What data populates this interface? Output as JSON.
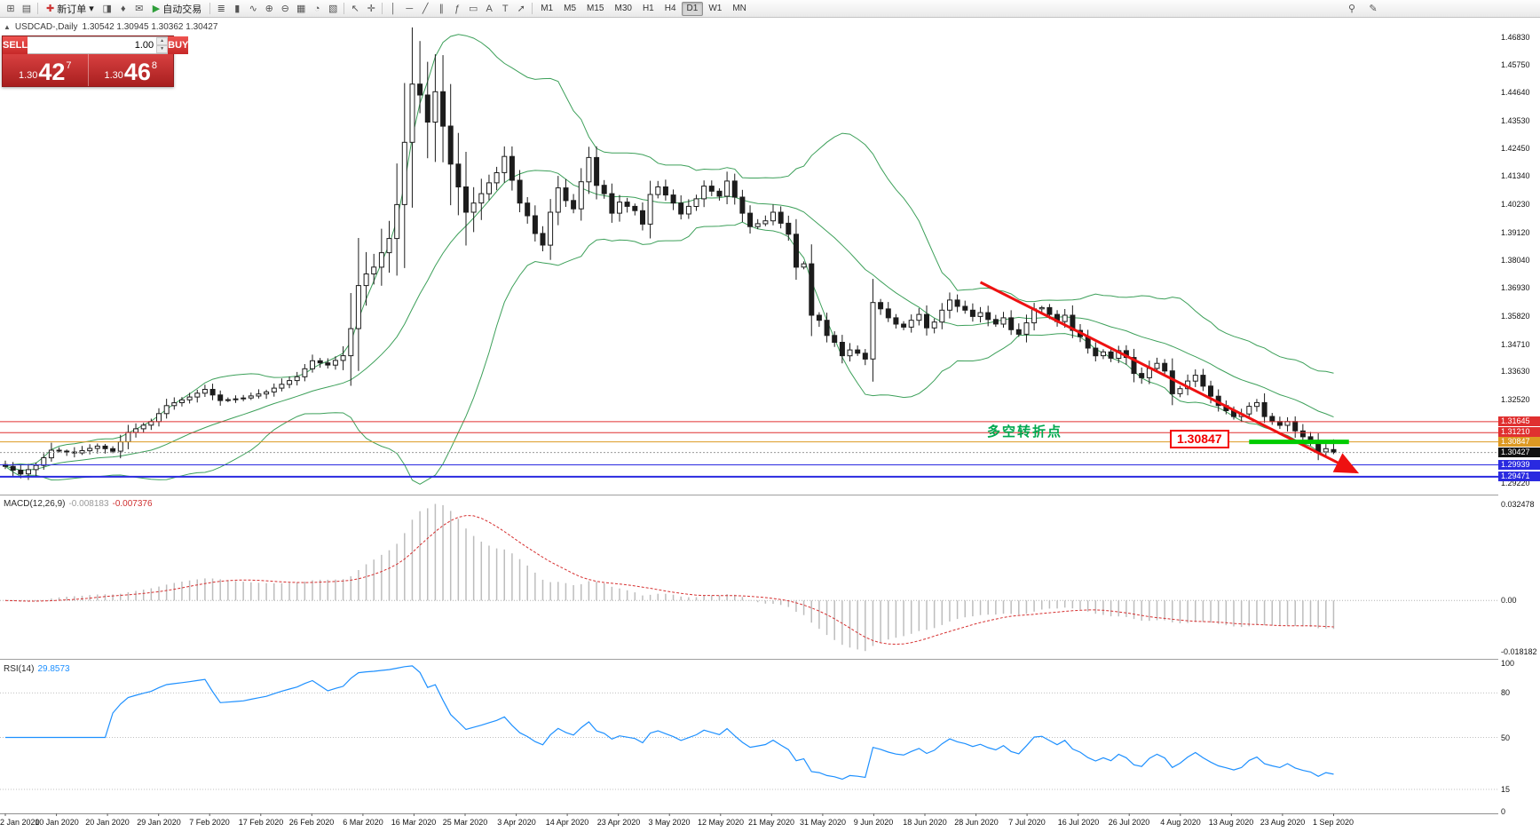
{
  "toolbar": {
    "left_icons": [
      {
        "name": "new-chart-icon",
        "glyph": "⊞"
      },
      {
        "name": "chart-profiles-icon",
        "glyph": "▤"
      }
    ],
    "new_order": {
      "icon_glyph": "✚",
      "label": "新订单",
      "caret": "▾"
    },
    "mid_icons": [
      {
        "name": "market-depth-icon",
        "glyph": "◨"
      },
      {
        "name": "alerts-icon",
        "glyph": "♦"
      },
      {
        "name": "mailbox-icon",
        "glyph": "✉"
      }
    ],
    "autotrade": {
      "icon_glyph": "▶",
      "label": "自动交易"
    },
    "chart_icons": [
      {
        "name": "bar-chart-icon",
        "glyph": "≣"
      },
      {
        "name": "candlestick-chart-icon",
        "glyph": "▮"
      },
      {
        "name": "line-chart-icon",
        "glyph": "∿"
      },
      {
        "name": "zoom-in-icon",
        "glyph": "⊕"
      },
      {
        "name": "zoom-out-icon",
        "glyph": "⊖"
      },
      {
        "name": "grid-icon",
        "glyph": "▦"
      },
      {
        "name": "period-icon",
        "glyph": "◔"
      },
      {
        "name": "templates-icon",
        "glyph": "▧"
      }
    ],
    "pointer_icons": [
      {
        "name": "cursor-icon",
        "glyph": "↖"
      },
      {
        "name": "crosshair-icon",
        "glyph": "✛"
      }
    ],
    "object_icons": [
      {
        "name": "vertical-line-icon",
        "glyph": "│"
      },
      {
        "name": "horizontal-line-icon",
        "glyph": "─"
      },
      {
        "name": "trendline-icon",
        "glyph": "╱"
      },
      {
        "name": "channel-icon",
        "glyph": "∥"
      },
      {
        "name": "fibonacci-icon",
        "glyph": "ƒ"
      },
      {
        "name": "shapes-icon",
        "glyph": "▭"
      },
      {
        "name": "text-icon",
        "glyph": "A"
      },
      {
        "name": "label-icon",
        "glyph": "T"
      },
      {
        "name": "arrow-tools-icon",
        "glyph": "➚"
      }
    ],
    "timeframes": [
      "M1",
      "M5",
      "M15",
      "M30",
      "H1",
      "H4",
      "D1",
      "W1",
      "MN"
    ],
    "active_timeframe": "D1",
    "right_icons": [
      {
        "name": "search-icon",
        "glyph": "⚲"
      },
      {
        "name": "edit-icon",
        "glyph": "✎"
      }
    ]
  },
  "chart": {
    "collapse_arrow": "▲",
    "symbol_title": "USDCAD-,Daily",
    "ohlc_text": "1.30542 1.30945 1.30362 1.30427",
    "trade_panel": {
      "sell_label": "SELL",
      "buy_label": "BUY",
      "volume": "1.00",
      "up_glyph": "▲",
      "down_glyph": "▼",
      "sell_price": {
        "small": "1.30",
        "big": "42",
        "sup": "7"
      },
      "buy_price": {
        "small": "1.30",
        "big": "46",
        "sup": "8"
      }
    },
    "annotations": {
      "price_label": "1.30847",
      "turning_point_label": "多空转折点"
    },
    "price_axis": {
      "plain_labels": [
        {
          "text": "1.46830",
          "price": 1.4683
        },
        {
          "text": "1.45750",
          "price": 1.4575
        },
        {
          "text": "1.44640",
          "price": 1.4464
        },
        {
          "text": "1.43530",
          "price": 1.4353
        },
        {
          "text": "1.42450",
          "price": 1.4245
        },
        {
          "text": "1.41340",
          "price": 1.4134
        },
        {
          "text": "1.40230",
          "price": 1.4023
        },
        {
          "text": "1.39120",
          "price": 1.3912
        },
        {
          "text": "1.38040",
          "price": 1.3804
        },
        {
          "text": "1.36930",
          "price": 1.3693
        },
        {
          "text": "1.35820",
          "price": 1.3582
        },
        {
          "text": "1.34710",
          "price": 1.3471
        },
        {
          "text": "1.33630",
          "price": 1.3363
        },
        {
          "text": "1.32520",
          "price": 1.3252
        },
        {
          "text": "1.29220",
          "price": 1.2922
        }
      ],
      "level_labels": [
        {
          "text": "1.31645",
          "price": 1.31645,
          "bg": "#e03030",
          "fg": "#ffffff"
        },
        {
          "text": "1.31210",
          "price": 1.3121,
          "bg": "#e03030",
          "fg": "#ffffff"
        },
        {
          "text": "1.30847",
          "price": 1.30847,
          "bg": "#dd9922",
          "fg": "#ffffff"
        },
        {
          "text": "1.30427",
          "price": 1.30427,
          "bg": "#111111",
          "fg": "#ffffff"
        },
        {
          "text": "1.29939",
          "price": 1.29939,
          "bg": "#2a2ae0",
          "fg": "#ffffff"
        },
        {
          "text": "1.29471",
          "price": 1.29471,
          "bg": "#2a2ae0",
          "fg": "#ffffff"
        }
      ]
    }
  },
  "macd": {
    "label": "MACD(12,26,9)",
    "value_main": "-0.008183",
    "value_signal": "-0.007376",
    "axis_top": "0.032478",
    "axis_zero": "0.00",
    "axis_bottom": "-0.018182"
  },
  "rsi": {
    "label": "RSI(14)",
    "value": "29.8573",
    "axis_labels": [
      {
        "text": "100",
        "value": 100
      },
      {
        "text": "80",
        "value": 80
      },
      {
        "text": "50",
        "value": 50
      },
      {
        "text": "15",
        "value": 15
      },
      {
        "text": "0",
        "value": 0
      }
    ],
    "level_lines": [
      80,
      50,
      15
    ]
  },
  "time_axis": {
    "dates": [
      "2 Jan 2020",
      "10 Jan 2020",
      "20 Jan 2020",
      "29 Jan 2020",
      "7 Feb 2020",
      "17 Feb 2020",
      "26 Feb 2020",
      "6 Mar 2020",
      "16 Mar 2020",
      "25 Mar 2020",
      "3 Apr 2020",
      "14 Apr 2020",
      "23 Apr 2020",
      "3 May 2020",
      "12 May 2020",
      "21 May 2020",
      "31 May 2020",
      "9 Jun 2020",
      "18 Jun 2020",
      "28 Jun 2020",
      "7 Jul 2020",
      "16 Jul 2020",
      "26 Jul 2020",
      "4 Aug 2020",
      "13 Aug 2020",
      "23 Aug 2020",
      "1 Sep 2020"
    ]
  },
  "chart_data": {
    "type": "candlestick",
    "symbol": "USDCAD",
    "period": "Daily",
    "bars": 174,
    "ohlc_current": {
      "open": 1.30542,
      "high": 1.30945,
      "low": 1.30362,
      "close": 1.30427
    },
    "bid": "1.30427",
    "ask": "1.30468",
    "price_axis": {
      "min": 1.288,
      "max": 1.476
    },
    "close_anchors": [
      [
        0,
        1.2988
      ],
      [
        2,
        1.2958
      ],
      [
        4,
        1.2992
      ],
      [
        6,
        1.3052
      ],
      [
        9,
        1.3041
      ],
      [
        12,
        1.3068
      ],
      [
        14,
        1.3048
      ],
      [
        16,
        1.3122
      ],
      [
        19,
        1.3165
      ],
      [
        21,
        1.3228
      ],
      [
        24,
        1.3262
      ],
      [
        26,
        1.3292
      ],
      [
        28,
        1.3248
      ],
      [
        31,
        1.3258
      ],
      [
        34,
        1.3282
      ],
      [
        36,
        1.3312
      ],
      [
        38,
        1.3342
      ],
      [
        40,
        1.3405
      ],
      [
        42,
        1.3388
      ],
      [
        44,
        1.3425
      ],
      [
        45,
        1.3532
      ],
      [
        46,
        1.3702
      ],
      [
        47,
        1.3748
      ],
      [
        48,
        1.3775
      ],
      [
        49,
        1.3832
      ],
      [
        50,
        1.3888
      ],
      [
        51,
        1.4022
      ],
      [
        52,
        1.4268
      ],
      [
        53,
        1.4498
      ],
      [
        54,
        1.4455
      ],
      [
        55,
        1.4348
      ],
      [
        56,
        1.4468
      ],
      [
        57,
        1.4332
      ],
      [
        58,
        1.4182
      ],
      [
        59,
        1.4092
      ],
      [
        60,
        1.3992
      ],
      [
        61,
        1.4028
      ],
      [
        62,
        1.4065
      ],
      [
        63,
        1.4108
      ],
      [
        64,
        1.4148
      ],
      [
        65,
        1.4212
      ],
      [
        66,
        1.4118
      ],
      [
        67,
        1.4028
      ],
      [
        68,
        1.3978
      ],
      [
        69,
        1.3908
      ],
      [
        70,
        1.3862
      ],
      [
        71,
        1.3992
      ],
      [
        72,
        1.4088
      ],
      [
        73,
        1.4038
      ],
      [
        74,
        1.4005
      ],
      [
        75,
        1.4112
      ],
      [
        76,
        1.4208
      ],
      [
        77,
        1.4098
      ],
      [
        78,
        1.4065
      ],
      [
        79,
        1.3988
      ],
      [
        80,
        1.4032
      ],
      [
        82,
        1.3998
      ],
      [
        83,
        1.3945
      ],
      [
        84,
        1.4062
      ],
      [
        85,
        1.4092
      ],
      [
        87,
        1.4028
      ],
      [
        88,
        1.3985
      ],
      [
        90,
        1.4045
      ],
      [
        91,
        1.4095
      ],
      [
        93,
        1.4055
      ],
      [
        94,
        1.4115
      ],
      [
        96,
        1.3988
      ],
      [
        97,
        1.3935
      ],
      [
        99,
        1.3958
      ],
      [
        100,
        1.3992
      ],
      [
        102,
        1.3905
      ],
      [
        103,
        1.3775
      ],
      [
        104,
        1.3788
      ],
      [
        105,
        1.3585
      ],
      [
        106,
        1.3565
      ],
      [
        107,
        1.3505
      ],
      [
        108,
        1.3478
      ],
      [
        109,
        1.3425
      ],
      [
        110,
        1.3448
      ],
      [
        111,
        1.3435
      ],
      [
        112,
        1.3412
      ],
      [
        113,
        1.3635
      ],
      [
        114,
        1.361
      ],
      [
        115,
        1.3575
      ],
      [
        116,
        1.355
      ],
      [
        117,
        1.3538
      ],
      [
        118,
        1.3565
      ],
      [
        119,
        1.3588
      ],
      [
        120,
        1.3535
      ],
      [
        121,
        1.3558
      ],
      [
        122,
        1.3605
      ],
      [
        123,
        1.3645
      ],
      [
        124,
        1.362
      ],
      [
        125,
        1.3605
      ],
      [
        126,
        1.358
      ],
      [
        127,
        1.3595
      ],
      [
        128,
        1.3568
      ],
      [
        129,
        1.355
      ],
      [
        130,
        1.3575
      ],
      [
        131,
        1.3528
      ],
      [
        132,
        1.351
      ],
      [
        133,
        1.3555
      ],
      [
        134,
        1.361
      ],
      [
        135,
        1.3615
      ],
      [
        136,
        1.3588
      ],
      [
        137,
        1.356
      ],
      [
        138,
        1.3585
      ],
      [
        139,
        1.3525
      ],
      [
        140,
        1.35
      ],
      [
        141,
        1.3455
      ],
      [
        142,
        1.3425
      ],
      [
        143,
        1.344
      ],
      [
        144,
        1.3415
      ],
      [
        145,
        1.3445
      ],
      [
        146,
        1.3418
      ],
      [
        147,
        1.3355
      ],
      [
        148,
        1.3338
      ],
      [
        149,
        1.3375
      ],
      [
        150,
        1.3395
      ],
      [
        151,
        1.3365
      ],
      [
        152,
        1.3275
      ],
      [
        153,
        1.3295
      ],
      [
        154,
        1.3325
      ],
      [
        155,
        1.3348
      ],
      [
        156,
        1.3305
      ],
      [
        157,
        1.3265
      ],
      [
        158,
        1.3228
      ],
      [
        159,
        1.3208
      ],
      [
        160,
        1.3185
      ],
      [
        161,
        1.3195
      ],
      [
        162,
        1.3225
      ],
      [
        163,
        1.324
      ],
      [
        164,
        1.3185
      ],
      [
        165,
        1.3165
      ],
      [
        166,
        1.315
      ],
      [
        167,
        1.3165
      ],
      [
        168,
        1.3128
      ],
      [
        169,
        1.3105
      ],
      [
        170,
        1.309
      ],
      [
        171,
        1.3045
      ],
      [
        172,
        1.3058
      ],
      [
        173,
        1.30427
      ]
    ],
    "forced_high": {
      "54": 1.4668
    },
    "levels": [
      {
        "price": 1.31645,
        "color": "#e03030",
        "width": 1,
        "dash": ""
      },
      {
        "price": 1.3121,
        "color": "#e03030",
        "width": 1,
        "dash": ""
      },
      {
        "price": 1.30847,
        "color": "#dd9922",
        "width": 1,
        "dash": ""
      },
      {
        "price": 1.30427,
        "color": "#999999",
        "width": 1,
        "dash": "2,2"
      },
      {
        "price": 1.29939,
        "color": "#2a2ae0",
        "width": 1,
        "dash": ""
      },
      {
        "price": 1.29471,
        "color": "#2a2ae0",
        "width": 2,
        "dash": ""
      }
    ],
    "trendline": {
      "from_bar": 127,
      "from_price": 1.3715,
      "to_bar": 176,
      "to_price": 1.2965,
      "color": "#ee1111",
      "width": 3
    },
    "support_segment": {
      "from_bar": 162,
      "to_bar": 175,
      "price": 1.30847,
      "color": "#00cc00",
      "width": 5
    },
    "indicators": {
      "bollinger_period": 20,
      "bollinger_dev": 2,
      "bollinger_color": "#3da05a",
      "macd_params": "12,26,9",
      "macd_hist_color": "#bdbdbd",
      "macd_signal_color": "#d63030",
      "rsi_period": 14,
      "rsi_color": "#1e90ff"
    }
  }
}
